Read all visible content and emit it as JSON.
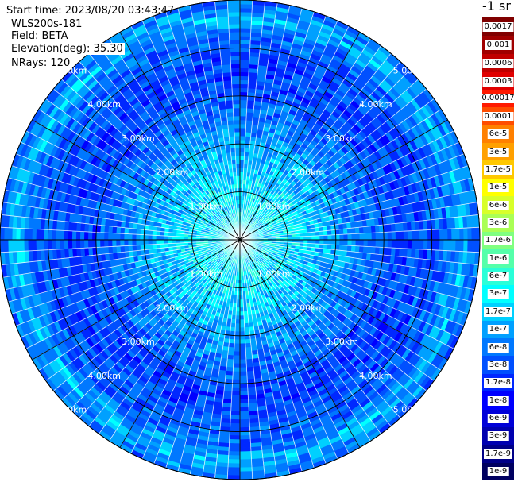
{
  "header": {
    "start_time": "Start time: 2023/08/20 03:43:47",
    "instrument": "WLS200s-181",
    "field": "Field: BETA",
    "elevation": "Elevation(deg): 35.30",
    "nrays": "NRays: 120"
  },
  "chart_data": {
    "type": "heatmap",
    "projection": "polar-ppi",
    "field": "BETA",
    "units_title": "-1 sr",
    "n_rays": 120,
    "elevation_deg": 35.3,
    "max_range_km": 5.0,
    "range_rings_km": [
      1,
      2,
      3,
      4,
      5
    ],
    "ring_labels": [
      "1.00km",
      "2.00km",
      "3.00km",
      "4.00km",
      "5.00km"
    ],
    "radials_every_deg": 30,
    "colorbar": {
      "top_labels": [
        "0.0017",
        "0.001",
        "0.0006",
        "0.0003"
      ],
      "labels": [
        "0.00017",
        "0.0001",
        "6e-5",
        "3e-5",
        "1.7e-5",
        "1e-5",
        "6e-6",
        "3e-6",
        "1.7e-6",
        "1e-6",
        "6e-7",
        "3e-7",
        "1.7e-7",
        "1e-7",
        "6e-8",
        "3e-8",
        "1.7e-8",
        "1e-8",
        "6e-9",
        "3e-9",
        "1.7e-9",
        "1e-9"
      ],
      "top_colors": [
        "#800000",
        "#a00000",
        "#c00000",
        "#e00000"
      ],
      "colors": [
        "#ff1a00",
        "#ff4d00",
        "#ff8000",
        "#ffa000",
        "#ffc800",
        "#ffff00",
        "#d8ff2a",
        "#aaff55",
        "#80ff80",
        "#55ffaa",
        "#2affd8",
        "#00ffff",
        "#00d0ff",
        "#00a0ff",
        "#0078ff",
        "#0050ff",
        "#0028ff",
        "#0000ff",
        "#0000d8",
        "#0000b0",
        "#000088",
        "#000060"
      ]
    },
    "profile_by_range_km": [
      {
        "r": 0.0,
        "level": 11
      },
      {
        "r": 1.0,
        "level": 11.5
      },
      {
        "r": 2.0,
        "level": 13
      },
      {
        "r": 3.0,
        "level": 15
      },
      {
        "r": 3.5,
        "level": 15.5
      },
      {
        "r": 4.3,
        "level": 14.5
      },
      {
        "r": 4.6,
        "level": 12.5
      },
      {
        "r": 5.0,
        "level": 14.5
      }
    ]
  }
}
